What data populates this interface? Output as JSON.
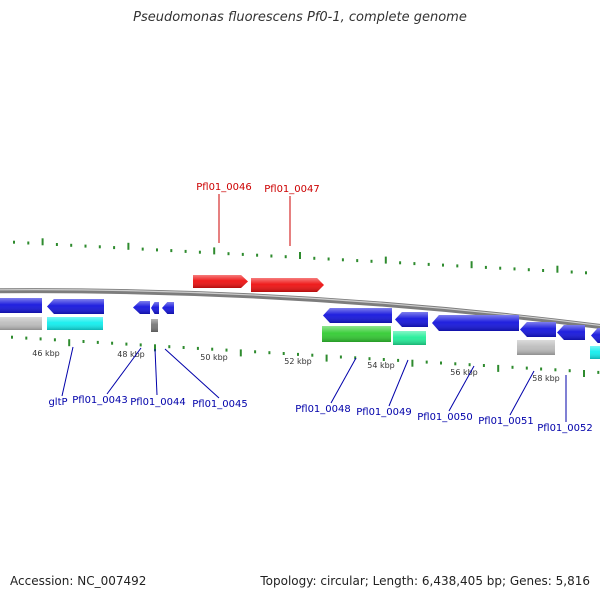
{
  "title": "Pseudomonas fluorescens Pf0-1, complete genome",
  "footer": {
    "accession": "Accession: NC_007492",
    "summary": "Topology: circular; Length: 6,438,405 bp; Genes: 5,816"
  },
  "colors": {
    "backbone": "#8c8c8c",
    "tick": "#2e8b2e",
    "top_label": "#cc0000",
    "bottom_label": "#0000aa",
    "red": "#ee1111",
    "blue": "#1515dd",
    "cyan": "#11eeee",
    "green": "#33cc33",
    "seagreen": "#22ee99",
    "gray": "#bdbdbd",
    "dark": "#777777"
  },
  "kbp_labels": [
    "46 kbp",
    "48 kbp",
    "50 kbp",
    "52 kbp",
    "54 kbp",
    "56 kbp",
    "58 kbp"
  ],
  "top_genes": [
    {
      "label": "Pfl01_0046",
      "color": "red",
      "arrow": "right"
    },
    {
      "label": "Pfl01_0047",
      "color": "red",
      "arrow": "right"
    }
  ],
  "bottom_labels": [
    "gltP",
    "Pfl01_0043",
    "Pfl01_0044",
    "Pfl01_0045",
    "Pfl01_0048",
    "Pfl01_0049",
    "Pfl01_0050",
    "Pfl01_0051",
    "Pfl01_0052"
  ],
  "strand_minus": [
    {
      "color": "blue",
      "arrow": "none"
    },
    {
      "color": "blue",
      "arrow": "left"
    },
    {
      "color": "blue",
      "arrow": "left"
    },
    {
      "color": "blue",
      "arrow": "left"
    },
    {
      "color": "blue",
      "arrow": "left"
    },
    {
      "color": "blue",
      "arrow": "left"
    },
    {
      "color": "blue",
      "arrow": "left"
    },
    {
      "color": "blue",
      "arrow": "left"
    },
    {
      "color": "blue",
      "arrow": "left"
    },
    {
      "color": "blue",
      "arrow": "left"
    },
    {
      "color": "blue",
      "arrow": "left"
    }
  ],
  "strand_lower": [
    {
      "color": "gray"
    },
    {
      "color": "cyan"
    },
    {
      "color": "dark"
    },
    {
      "color": "green"
    },
    {
      "color": "seagreen"
    },
    {
      "color": "gray"
    },
    {
      "color": "cyan"
    }
  ]
}
